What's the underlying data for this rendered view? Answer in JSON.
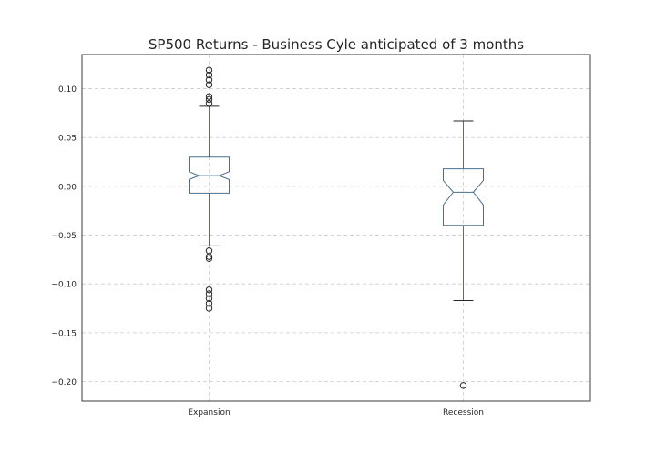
{
  "chart_data": {
    "type": "boxplot",
    "title": "SP500 Returns - Business Cyle anticipated of 3 months",
    "xlabel": "",
    "ylabel": "",
    "ylim": [
      -0.22,
      0.135
    ],
    "yticks": [
      0.1,
      0.05,
      0.0,
      -0.05,
      -0.1,
      -0.15,
      -0.2
    ],
    "ytick_labels": [
      "0.10",
      "0.05",
      "0.00",
      "−0.05",
      "−0.10",
      "−0.15",
      "−0.20"
    ],
    "grid": true,
    "notched": true,
    "categories": [
      "Expansion",
      "Recession"
    ],
    "boxes": [
      {
        "label": "Expansion",
        "whisker_low": -0.061,
        "q1": -0.007,
        "notch_low": 0.007,
        "median": 0.011,
        "notch_high": 0.015,
        "q3": 0.03,
        "whisker_high": 0.082,
        "outliers": [
          0.119,
          0.114,
          0.109,
          0.104,
          0.092,
          0.089,
          0.085,
          -0.066,
          -0.072,
          -0.074,
          -0.106,
          -0.11,
          -0.115,
          -0.12,
          -0.125
        ]
      },
      {
        "label": "Recession",
        "whisker_low": -0.117,
        "q1": -0.04,
        "notch_low": -0.019,
        "median": -0.006,
        "notch_high": 0.006,
        "q3": 0.018,
        "whisker_high": 0.067,
        "outliers": [
          -0.204
        ]
      }
    ],
    "colors": {
      "box": "#4c6f8a",
      "whisker": "#4c6f8a",
      "cap": "#262626",
      "median": "#4c6f8a",
      "flier": "#262626",
      "frame": "#262626",
      "grid": "#cccccc"
    }
  }
}
